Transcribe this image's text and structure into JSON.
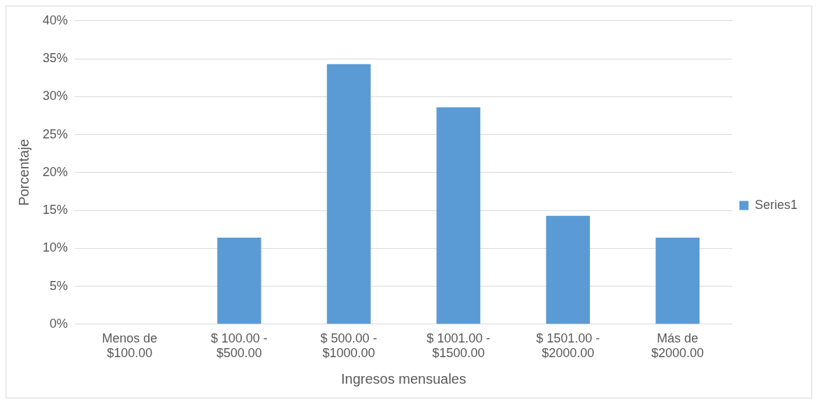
{
  "chart_data": {
    "type": "bar",
    "xlabel": "Ingresos mensuales",
    "ylabel": "Porcentaje",
    "categories": [
      "Menos de $100.00",
      "$ 100.00 - $500.00",
      "$ 500.00 - $1000.00",
      "$ 1001.00 - $1500.00",
      "$ 1501.00 - $2000.00",
      "Más de $2000.00"
    ],
    "series": [
      {
        "name": "Series1",
        "color": "#5b9bd5",
        "values": [
          0,
          11.4,
          34.3,
          28.6,
          14.3,
          11.4
        ]
      }
    ],
    "ylim": [
      0,
      40
    ],
    "yticks": [
      {
        "value": 0,
        "label": "0%"
      },
      {
        "value": 5,
        "label": "5%"
      },
      {
        "value": 10,
        "label": "10%"
      },
      {
        "value": 15,
        "label": "15%"
      },
      {
        "value": 20,
        "label": "20%"
      },
      {
        "value": 25,
        "label": "25%"
      },
      {
        "value": 30,
        "label": "30%"
      },
      {
        "value": 35,
        "label": "35%"
      },
      {
        "value": 40,
        "label": "40%"
      }
    ],
    "grid": "y",
    "legend": "right"
  }
}
